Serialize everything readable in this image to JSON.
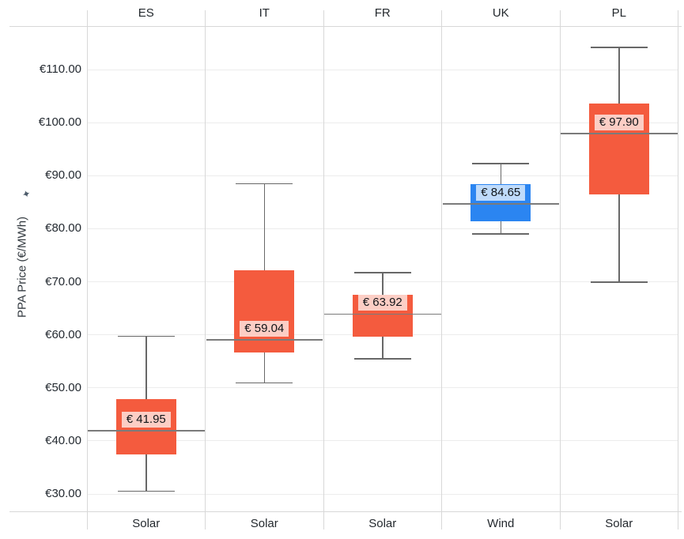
{
  "chart_data": {
    "type": "box",
    "title": "",
    "xlabel": "",
    "ylabel": "PPA Price (€/MWh)",
    "ylim": [
      27,
      118.5
    ],
    "grid": true,
    "legend": "none",
    "yticks": [
      {
        "value": 110,
        "label": "€110.00"
      },
      {
        "value": 100,
        "label": "€100.00"
      },
      {
        "value": 90,
        "label": "€90.00"
      },
      {
        "value": 80,
        "label": "€80.00"
      },
      {
        "value": 70,
        "label": "€70.00"
      },
      {
        "value": 60,
        "label": "€60.00"
      },
      {
        "value": 50,
        "label": "€50.00"
      },
      {
        "value": 40,
        "label": "€40.00"
      },
      {
        "value": 30,
        "label": "€30.00"
      }
    ],
    "panels": [
      {
        "country": "ES",
        "tech": "Solar",
        "low": 30.5,
        "q1": 37.5,
        "median": 41.95,
        "q3": 47.9,
        "high": 59.7,
        "price_label": "€ 41.95",
        "color": "#F45B3E"
      },
      {
        "country": "IT",
        "tech": "Solar",
        "low": 50.9,
        "q1": 56.7,
        "median": 59.04,
        "q3": 72.2,
        "high": 88.5,
        "price_label": "€ 59.04",
        "color": "#F45B3E"
      },
      {
        "country": "FR",
        "tech": "Solar",
        "low": 55.5,
        "q1": 59.6,
        "median": 63.92,
        "q3": 67.6,
        "high": 71.7,
        "price_label": "€ 63.92",
        "color": "#F45B3E"
      },
      {
        "country": "UK",
        "tech": "Wind",
        "low": 79.0,
        "q1": 81.4,
        "median": 84.65,
        "q3": 88.4,
        "high": 92.3,
        "price_label": "€ 84.65",
        "color": "#2B85F1"
      },
      {
        "country": "PL",
        "tech": "Solar",
        "low": 69.9,
        "q1": 86.4,
        "median": 97.9,
        "q3": 103.6,
        "high": 114.2,
        "price_label": "€ 97.90",
        "color": "#F45B3E"
      }
    ],
    "colors": {
      "solar": "#F45B3E",
      "wind": "#2B85F1",
      "gridline": "#ECECEC",
      "separator": "#D8D8D8",
      "median_line": "#7B7B7B",
      "whisker": "#686868",
      "text": "#24292E",
      "value_label_bg": "rgba(255,255,255,0.7)"
    },
    "icons": {
      "pin": "pin-icon"
    }
  }
}
